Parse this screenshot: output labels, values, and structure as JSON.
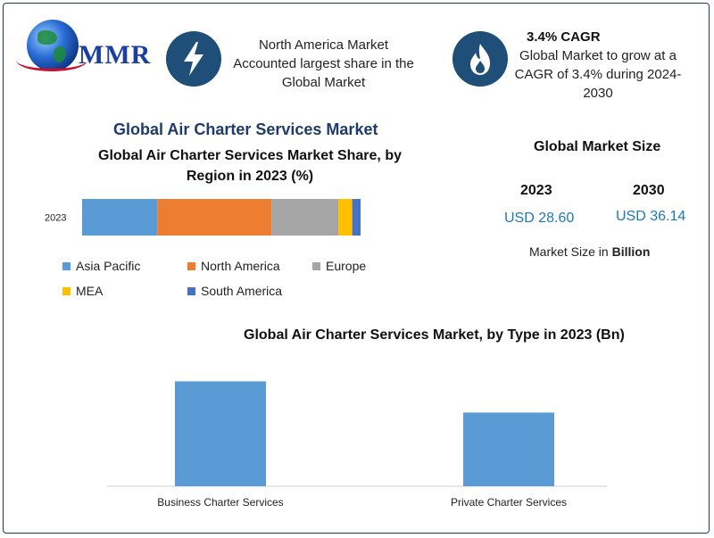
{
  "header": {
    "logo_text": "MMR",
    "info1": {
      "icon": "lightning-bolt-icon",
      "line1": "North America Market",
      "line2": "Accounted largest share in the",
      "line3": "Global Market"
    },
    "info2": {
      "icon": "flame-icon",
      "title": "3.4% CAGR",
      "line1": "Global Market to grow at a",
      "line2": "CAGR of 3.4% during 2024-",
      "line3": "2030"
    }
  },
  "main_title": "Global Air Charter Services Market",
  "market_size": {
    "title": "Global Market Size",
    "year1": "2023",
    "value1": "USD 28.60",
    "year2": "2030",
    "value2": "USD 36.14",
    "note_prefix": "Market Size in",
    "note_unit": "Billion"
  },
  "colors": {
    "asia_pacific": "#5b9bd5",
    "north_america": "#ed7d31",
    "europe": "#a5a5a5",
    "mea": "#ffc000",
    "south_america": "#4472c4",
    "title_blue": "#1f3b6e",
    "value_blue": "#1f78b4"
  },
  "chart_data": [
    {
      "type": "bar",
      "orientation": "horizontal-stacked",
      "title_line1": "Global Air Charter Services Market Share, by",
      "title_line2": "Region in 2023 (%)",
      "categories": [
        "2023"
      ],
      "series": [
        {
          "name": "Asia Pacific",
          "values": [
            27
          ]
        },
        {
          "name": "North America",
          "values": [
            41
          ]
        },
        {
          "name": "Europe",
          "values": [
            24
          ]
        },
        {
          "name": "MEA",
          "values": [
            5
          ]
        },
        {
          "name": "South America",
          "values": [
            3
          ]
        }
      ],
      "xlim": [
        0,
        100
      ],
      "grid": false,
      "legend_position": "bottom"
    },
    {
      "type": "bar",
      "title": "Global Air Charter Services Market, by Type in 2023 (Bn)",
      "categories": [
        "Business Charter Services",
        "Private Charter Services"
      ],
      "values": [
        16.8,
        11.8
      ],
      "ylim": [
        0,
        20
      ],
      "grid": false
    }
  ]
}
